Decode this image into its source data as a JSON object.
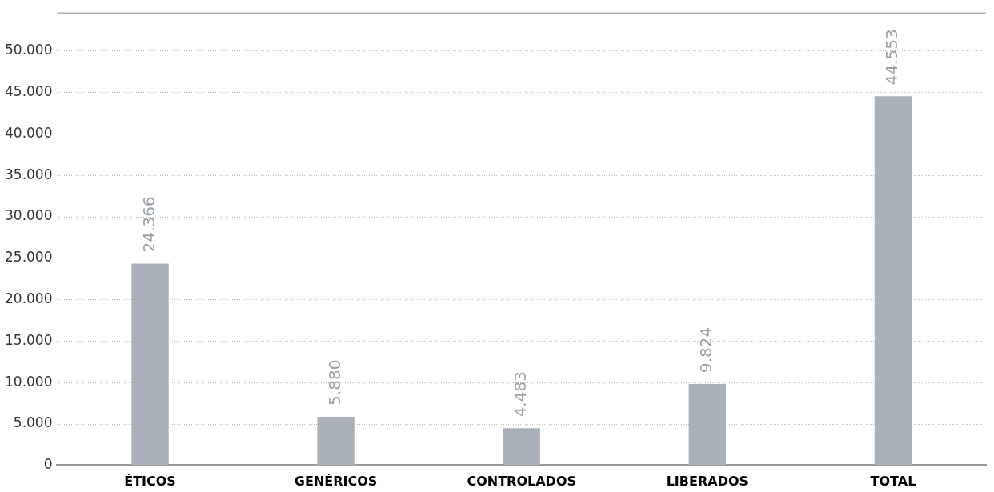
{
  "chart_data": {
    "type": "bar",
    "categories": [
      "ÉTICOS",
      "GENÉRICOS",
      "CONTROLADOS",
      "LIBERADOS",
      "TOTAL"
    ],
    "values": [
      24366,
      5880,
      4483,
      9824,
      44553
    ],
    "value_labels": [
      "24.366",
      "5.880",
      "4.483",
      "9.824",
      "44.553"
    ],
    "color": "#aab1b9",
    "ylim": [
      0,
      54600
    ],
    "yticks": [
      {
        "value": 0,
        "label": "0"
      },
      {
        "value": 5000,
        "label": "5.000"
      },
      {
        "value": 10000,
        "label": "10.000"
      },
      {
        "value": 15000,
        "label": "15.000"
      },
      {
        "value": 20000,
        "label": "20.000"
      },
      {
        "value": 25000,
        "label": "25.000"
      },
      {
        "value": 30000,
        "label": "30.000"
      },
      {
        "value": 35000,
        "label": "35.000"
      },
      {
        "value": 40000,
        "label": "40.000"
      },
      {
        "value": 45000,
        "label": "45.000"
      },
      {
        "value": 50000,
        "label": "50.000"
      }
    ],
    "grid": "y",
    "legend": false
  }
}
